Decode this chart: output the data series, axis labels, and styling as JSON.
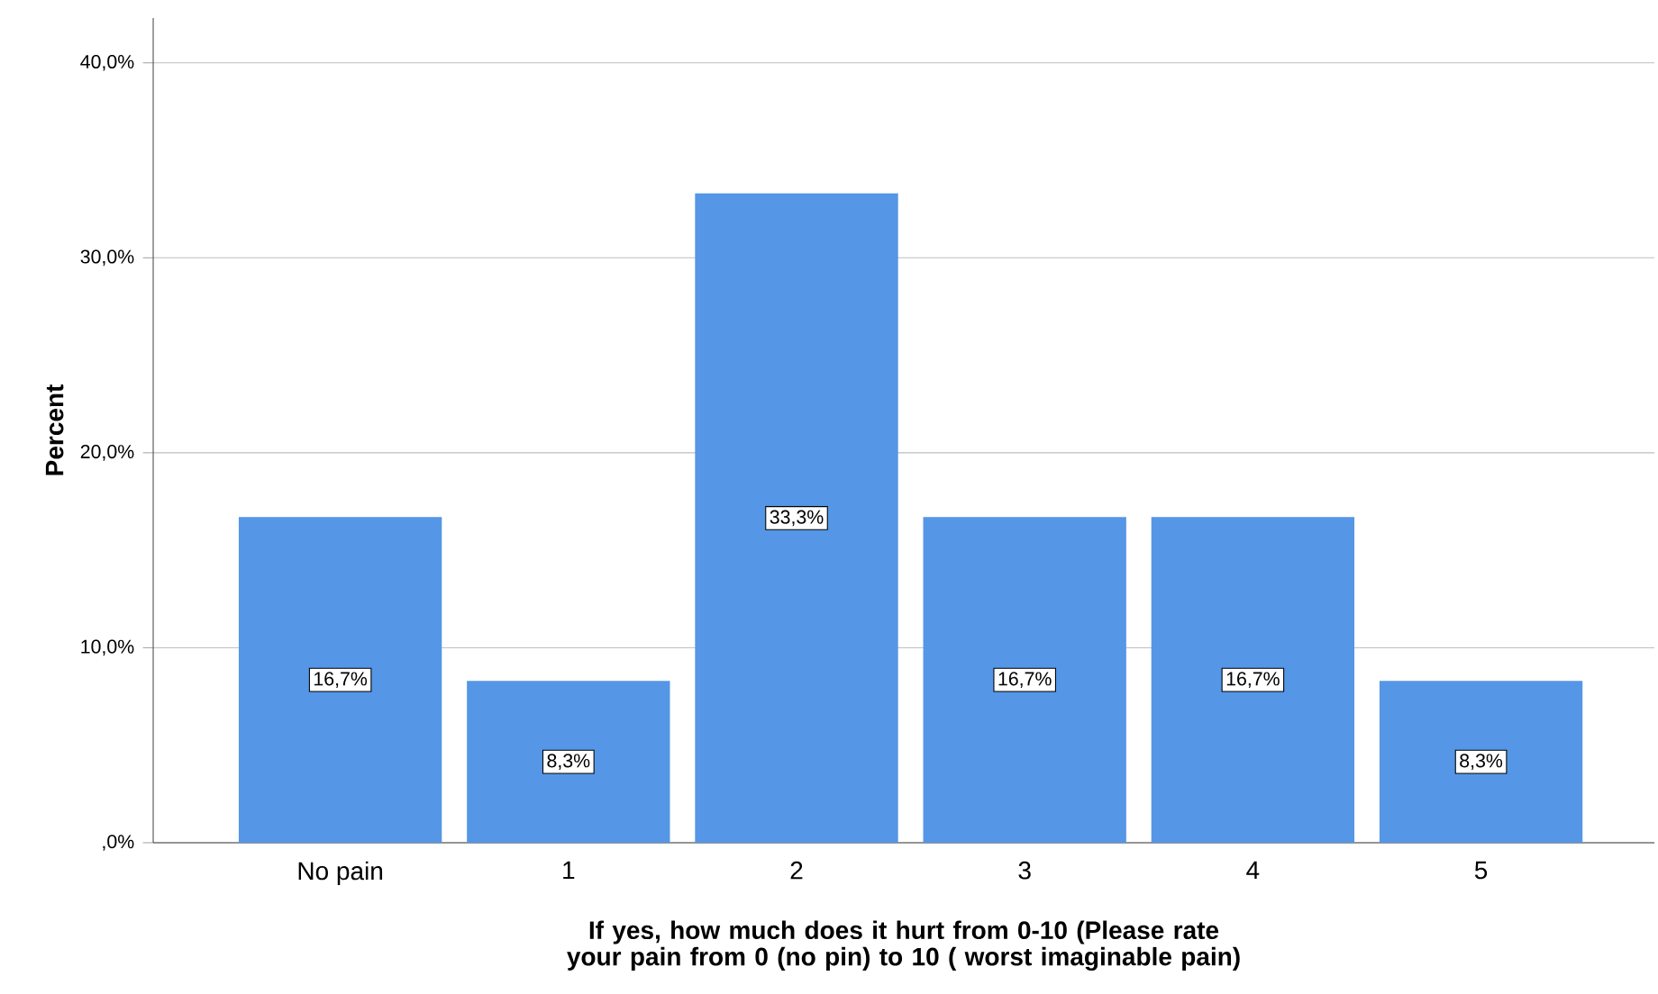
{
  "chart_data": {
    "type": "bar",
    "xlabel": "If yes, how much does it hurt from 0-10 (Please rate your pain from 0 (no pin) to 10 ( worst imaginable pain)",
    "ylabel": "Percent",
    "categories": [
      "No pain",
      "1",
      "2",
      "3",
      "4",
      "5"
    ],
    "values": [
      16.7,
      8.3,
      33.3,
      16.7,
      16.7,
      8.3
    ],
    "value_labels": [
      "16,7%",
      "8,3%",
      "33,3%",
      "16,7%",
      "16,7%",
      "8,3%"
    ],
    "color": "#5596e6",
    "ylim": [
      0,
      42.3
    ],
    "yticks": [
      {
        "value": 0,
        "label": ",0%"
      },
      {
        "value": 10,
        "label": "10,0%"
      },
      {
        "value": 20,
        "label": "20,0%"
      },
      {
        "value": 30,
        "label": "30,0%"
      },
      {
        "value": 40,
        "label": "40,0%"
      }
    ],
    "grid": "y"
  }
}
